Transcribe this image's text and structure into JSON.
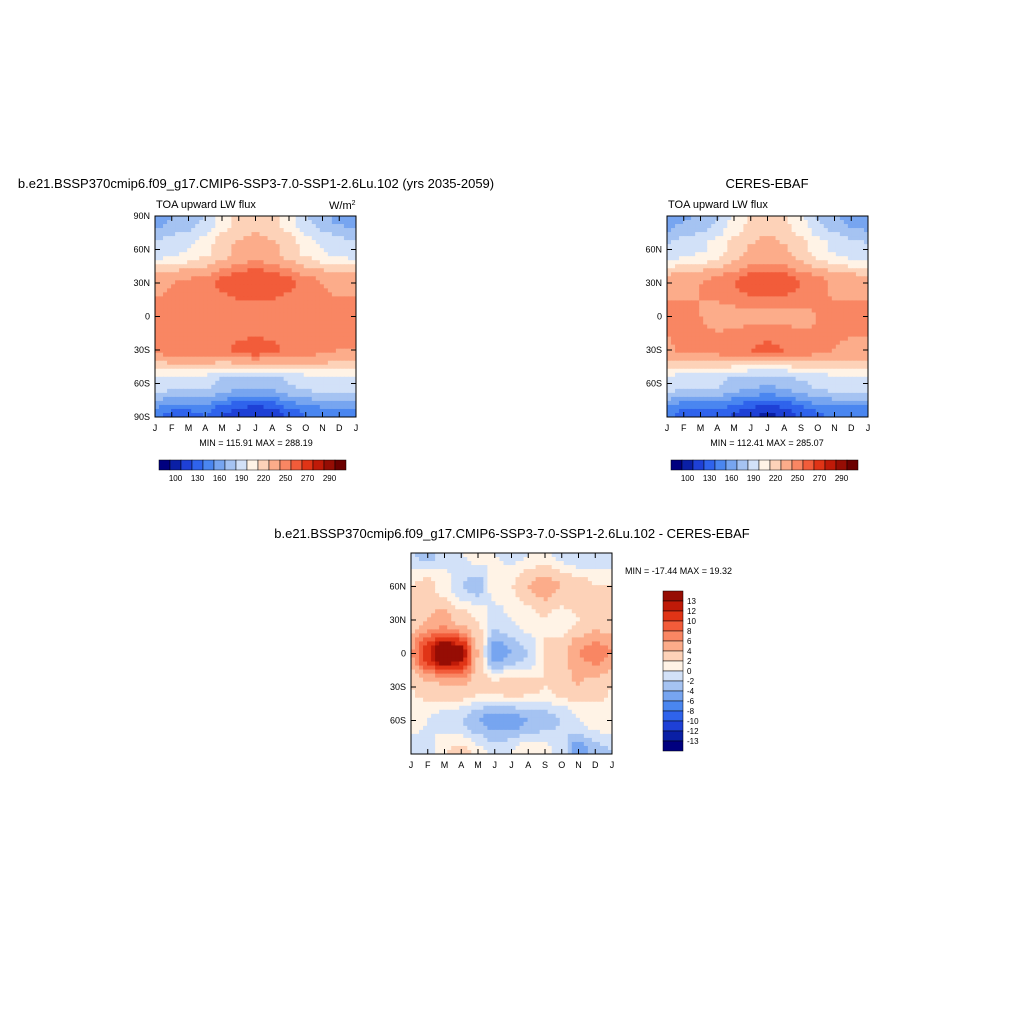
{
  "palette": [
    "#00007f",
    "#0a1fa5",
    "#1e40d6",
    "#2f63ec",
    "#4a86f0",
    "#77a5f0",
    "#a5c3f2",
    "#d2e1f8",
    "#fff3e6",
    "#fdd2b8",
    "#fcac8a",
    "#f98663",
    "#f25c3a",
    "#e03416",
    "#bf1a08",
    "#960d04",
    "#6b0000"
  ],
  "panels": [
    {
      "title": "b.e21.BSSP370cmip6.f09_g17.CMIP6-SSP3-7.0-SSP1-2.6Lu.102 (yrs 2035-2059)",
      "variable": "TOA upward LW flux",
      "units": "W/m",
      "units_sup": "2",
      "yticks": [
        "90N",
        "60N",
        "30N",
        "0",
        "30S",
        "60S",
        "90S"
      ],
      "xticks": [
        "J",
        "F",
        "M",
        "A",
        "M",
        "J",
        "J",
        "A",
        "S",
        "O",
        "N",
        "D",
        "J"
      ],
      "minmax": "MIN = 115.91 MAX = 288.19",
      "colorbar_labels": [
        "100",
        "130",
        "160",
        "190",
        "220",
        "250",
        "270",
        "290"
      ]
    },
    {
      "title": "CERES-EBAF",
      "variable": "TOA upward LW flux",
      "yticks": [
        "60N",
        "30N",
        "0",
        "30S",
        "60S"
      ],
      "xticks": [
        "J",
        "F",
        "M",
        "A",
        "M",
        "J",
        "J",
        "A",
        "S",
        "O",
        "N",
        "D",
        "J"
      ],
      "minmax": "MIN = 112.41 MAX = 285.07",
      "colorbar_labels": [
        "100",
        "130",
        "160",
        "190",
        "220",
        "250",
        "270",
        "290"
      ]
    },
    {
      "title": "b.e21.BSSP370cmip6.f09_g17.CMIP6-SSP3-7.0-SSP1-2.6Lu.102 - CERES-EBAF",
      "yticks": [
        "60N",
        "30N",
        "0",
        "30S",
        "60S"
      ],
      "xticks": [
        "J",
        "F",
        "M",
        "A",
        "M",
        "J",
        "J",
        "A",
        "S",
        "O",
        "N",
        "D",
        "J"
      ],
      "minmax": "MIN = -17.44 MAX =  19.32",
      "colorbar_labels": [
        "13",
        "12",
        "10",
        "8",
        "6",
        "4",
        "2",
        "0",
        "-2",
        "-4",
        "-6",
        "-8",
        "-10",
        "-12",
        "-13"
      ]
    }
  ],
  "chart_data": [
    {
      "type": "heatmap",
      "title": "b.e21.BSSP370cmip6.f09_g17.CMIP6-SSP3-7.0-SSP1-2.6Lu.102 (yrs 2035-2059)",
      "subtitle": "TOA upward LW flux",
      "units": "W/m2",
      "x": [
        "J",
        "F",
        "M",
        "A",
        "M",
        "J",
        "J",
        "A",
        "S",
        "O",
        "N",
        "D",
        "J"
      ],
      "y": [
        "90S",
        "60S",
        "30S",
        "0",
        "30N",
        "60N",
        "90N"
      ],
      "values": [
        [
          150,
          140,
          140,
          145,
          130,
          120,
          115,
          120,
          135,
          145,
          150,
          150,
          150
        ],
        [
          200,
          195,
          195,
          195,
          185,
          180,
          178,
          180,
          190,
          195,
          200,
          200,
          200
        ],
        [
          250,
          255,
          255,
          255,
          258,
          262,
          265,
          262,
          258,
          255,
          252,
          250,
          250
        ],
        [
          258,
          255,
          252,
          250,
          250,
          250,
          250,
          250,
          250,
          252,
          255,
          258,
          258
        ],
        [
          245,
          250,
          252,
          255,
          262,
          268,
          270,
          268,
          262,
          255,
          250,
          245,
          245
        ],
        [
          195,
          200,
          205,
          215,
          228,
          238,
          242,
          238,
          228,
          215,
          205,
          198,
          195
        ],
        [
          165,
          175,
          180,
          190,
          210,
          225,
          228,
          225,
          210,
          190,
          180,
          170,
          165
        ]
      ],
      "levels": [
        100,
        130,
        160,
        190,
        220,
        250,
        270,
        290
      ],
      "min": 115.91,
      "max": 288.19
    },
    {
      "type": "heatmap",
      "title": "CERES-EBAF",
      "subtitle": "TOA upward LW flux",
      "x": [
        "J",
        "F",
        "M",
        "A",
        "M",
        "J",
        "J",
        "A",
        "S",
        "O",
        "N",
        "D",
        "J"
      ],
      "y": [
        "90S",
        "60S",
        "30S",
        "0",
        "30N",
        "60N",
        "90N"
      ],
      "values": [
        [
          148,
          138,
          135,
          140,
          128,
          118,
          112,
          118,
          132,
          142,
          148,
          148,
          148
        ],
        [
          198,
          193,
          192,
          192,
          183,
          178,
          176,
          178,
          188,
          193,
          198,
          198,
          198
        ],
        [
          248,
          253,
          253,
          253,
          256,
          260,
          262,
          260,
          255,
          252,
          250,
          248,
          248
        ],
        [
          255,
          252,
          250,
          248,
          247,
          248,
          248,
          248,
          248,
          250,
          252,
          255,
          255
        ],
        [
          243,
          248,
          250,
          253,
          260,
          265,
          268,
          265,
          260,
          253,
          248,
          243,
          243
        ],
        [
          193,
          198,
          203,
          213,
          226,
          236,
          240,
          236,
          226,
          213,
          203,
          196,
          193
        ],
        [
          163,
          173,
          178,
          188,
          208,
          222,
          226,
          222,
          208,
          188,
          178,
          168,
          163
        ]
      ],
      "levels": [
        100,
        130,
        160,
        190,
        220,
        250,
        270,
        290
      ],
      "min": 112.41,
      "max": 285.07
    },
    {
      "type": "heatmap",
      "title": "b.e21.BSSP370cmip6.f09_g17.CMIP6-SSP3-7.0-SSP1-2.6Lu.102 - CERES-EBAF",
      "x": [
        "J",
        "F",
        "M",
        "A",
        "M",
        "J",
        "J",
        "A",
        "S",
        "O",
        "N",
        "D",
        "J"
      ],
      "y": [
        "90S",
        "60S",
        "30S",
        "0",
        "30N",
        "60N",
        "90N"
      ],
      "values": [
        [
          -2,
          -1,
          2,
          3,
          1,
          -1,
          0,
          2,
          1,
          -1,
          -6,
          -3,
          -2
        ],
        [
          1,
          0,
          -1,
          -2,
          -4,
          -5,
          -5,
          -4,
          -3,
          -2,
          0,
          1,
          1
        ],
        [
          2,
          3,
          4,
          4,
          3,
          3,
          4,
          3,
          2,
          3,
          4,
          3,
          2
        ],
        [
          6,
          12,
          16,
          14,
          4,
          -6,
          -4,
          -2,
          2,
          3,
          6,
          7,
          6
        ],
        [
          3,
          4,
          5,
          3,
          2,
          -1,
          0,
          1,
          2,
          1,
          2,
          3,
          3
        ],
        [
          2,
          3,
          1,
          -2,
          -3,
          1,
          2,
          4,
          5,
          4,
          3,
          2,
          2
        ],
        [
          -2,
          -3,
          -1,
          0,
          1,
          0,
          -1,
          0,
          1,
          -1,
          -2,
          -2,
          -2
        ]
      ],
      "levels": [
        -13,
        -12,
        -10,
        -8,
        -6,
        -4,
        -2,
        0,
        2,
        4,
        6,
        8,
        10,
        12,
        13
      ],
      "min": -17.44,
      "max": 19.32
    }
  ]
}
